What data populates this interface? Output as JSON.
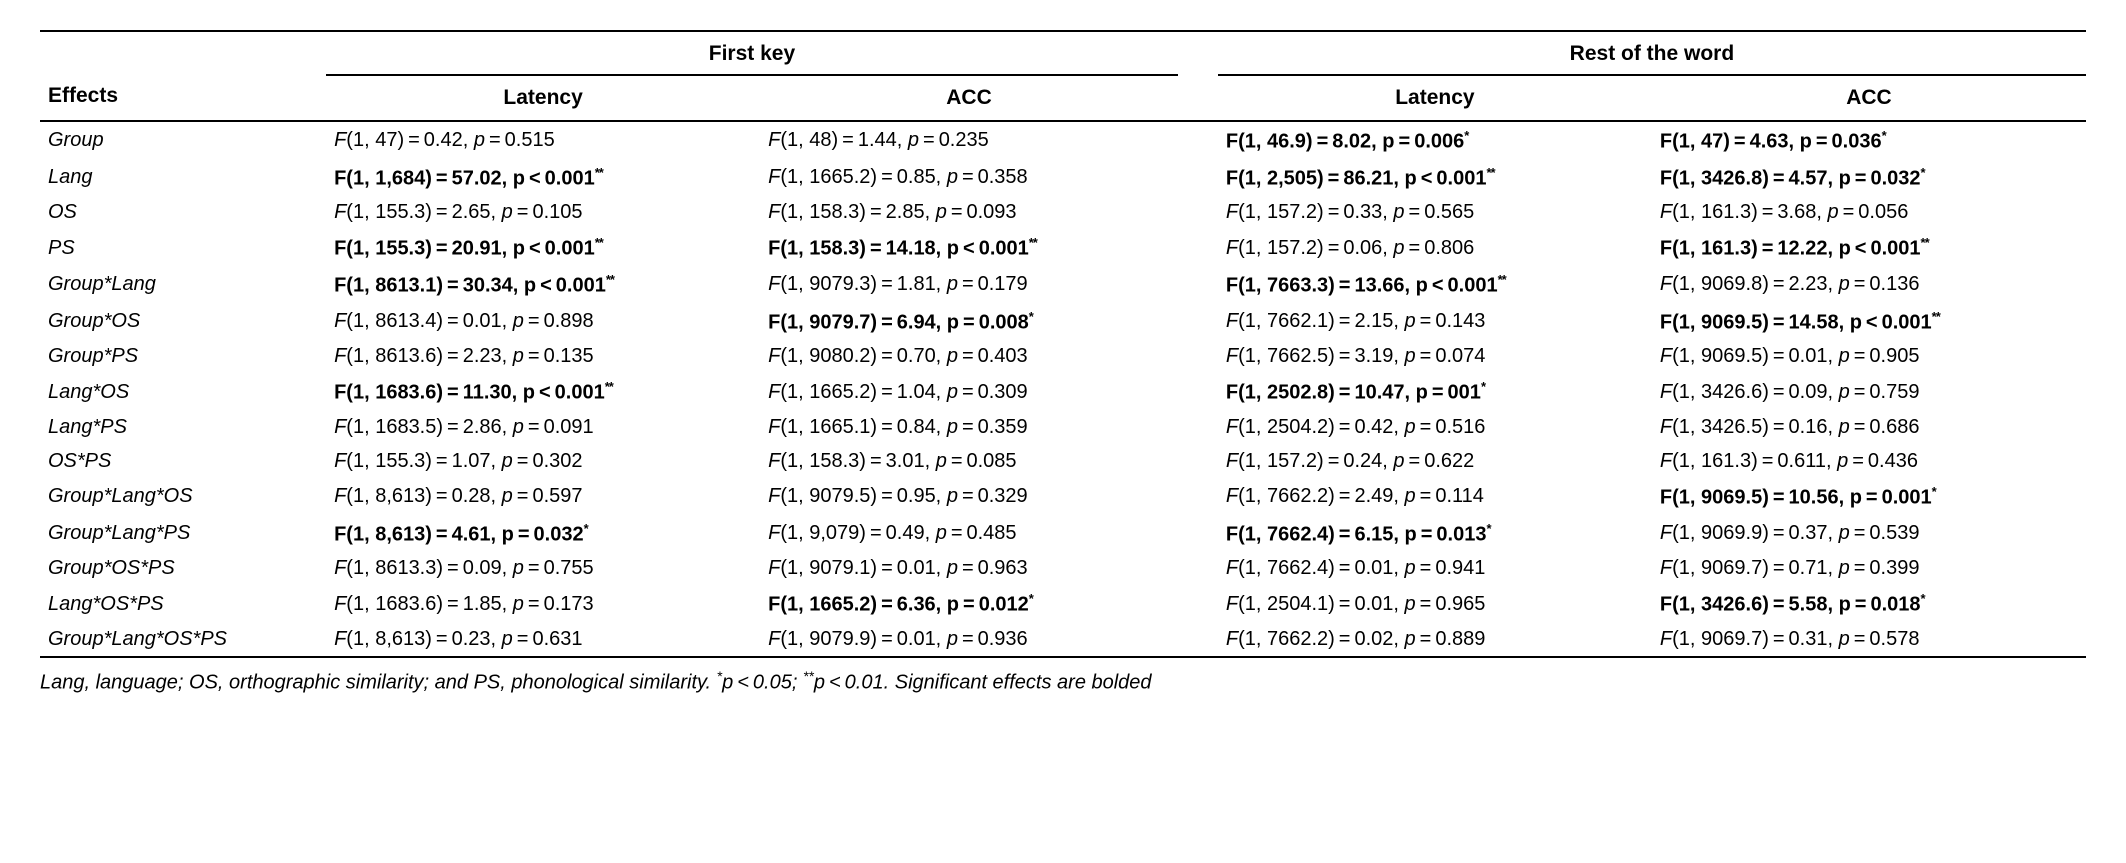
{
  "header": {
    "effects": "Effects",
    "group1": "First key",
    "group2": "Rest of the word",
    "sub1": "Latency",
    "sub2": "ACC"
  },
  "effects": [
    "Group",
    "Lang",
    "OS",
    "PS",
    "Group*Lang",
    "Group*OS",
    "Group*PS",
    "Lang*OS",
    "Lang*PS",
    "OS*PS",
    "Group*Lang*OS",
    "Group*Lang*PS",
    "Group*OS*PS",
    "Lang*OS*PS",
    "Group*Lang*OS*PS"
  ],
  "columns": [
    "fk_lat",
    "fk_acc",
    "rw_lat",
    "rw_acc"
  ],
  "cells": {
    "fk_lat": [
      {
        "df": "1, 47",
        "F": "0.42",
        "p": "0.515",
        "sig": 0,
        "eq": true
      },
      {
        "df": "1, 1,684",
        "F": "57.02",
        "p": "0.001",
        "sig": 2,
        "eq": false
      },
      {
        "df": "1, 155.3",
        "F": "2.65",
        "p": "0.105",
        "sig": 0,
        "eq": true
      },
      {
        "df": "1, 155.3",
        "F": "20.91",
        "p": "0.001",
        "sig": 2,
        "eq": false
      },
      {
        "df": "1, 8613.1",
        "F": "30.34",
        "p": "0.001",
        "sig": 2,
        "eq": false
      },
      {
        "df": "1, 8613.4",
        "F": "0.01",
        "p": "0.898",
        "sig": 0,
        "eq": true
      },
      {
        "df": "1, 8613.6",
        "F": "2.23",
        "p": "0.135",
        "sig": 0,
        "eq": true
      },
      {
        "df": "1, 1683.6",
        "F": "11.30",
        "p": "0.001",
        "sig": 2,
        "eq": false
      },
      {
        "df": "1, 1683.5",
        "F": "2.86",
        "p": "0.091",
        "sig": 0,
        "eq": true
      },
      {
        "df": "1, 155.3",
        "F": "1.07",
        "p": "0.302",
        "sig": 0,
        "eq": true
      },
      {
        "df": "1, 8,613",
        "F": "0.28",
        "p": "0.597",
        "sig": 0,
        "eq": true
      },
      {
        "df": "1, 8,613",
        "F": "4.61",
        "p": "0.032",
        "sig": 1,
        "eq": true
      },
      {
        "df": "1, 8613.3",
        "F": "0.09",
        "p": "0.755",
        "sig": 0,
        "eq": true
      },
      {
        "df": "1, 1683.6",
        "F": "1.85",
        "p": "0.173",
        "sig": 0,
        "eq": true
      },
      {
        "df": "1, 8,613",
        "F": "0.23",
        "p": "0.631",
        "sig": 0,
        "eq": true
      }
    ],
    "fk_acc": [
      {
        "df": "1, 48",
        "F": "1.44",
        "p": "0.235",
        "sig": 0,
        "eq": true
      },
      {
        "df": "1, 1665.2",
        "F": "0.85",
        "p": "0.358",
        "sig": 0,
        "eq": true
      },
      {
        "df": "1, 158.3",
        "F": "2.85",
        "p": "0.093",
        "sig": 0,
        "eq": true
      },
      {
        "df": "1, 158.3",
        "F": "14.18",
        "p": "0.001",
        "sig": 2,
        "eq": false
      },
      {
        "df": "1, 9079.3",
        "F": "1.81",
        "p": "0.179",
        "sig": 0,
        "eq": true
      },
      {
        "df": "1, 9079.7",
        "F": "6.94",
        "p": "0.008",
        "sig": 1,
        "eq": true
      },
      {
        "df": "1, 9080.2",
        "F": "0.70",
        "p": "0.403",
        "sig": 0,
        "eq": true
      },
      {
        "df": "1, 1665.2",
        "F": "1.04",
        "p": "0.309",
        "sig": 0,
        "eq": true
      },
      {
        "df": "1, 1665.1",
        "F": "0.84",
        "p": "0.359",
        "sig": 0,
        "eq": true
      },
      {
        "df": "1, 158.3",
        "F": "3.01",
        "p": "0.085",
        "sig": 0,
        "eq": true
      },
      {
        "df": "1, 9079.5",
        "F": "0.95",
        "p": "0.329",
        "sig": 0,
        "eq": true
      },
      {
        "df": "1, 9,079",
        "F": "0.49",
        "p": "0.485",
        "sig": 0,
        "eq": true
      },
      {
        "df": "1, 9079.1",
        "F": "0.01",
        "p": "0.963",
        "sig": 0,
        "eq": true
      },
      {
        "df": "1, 1665.2",
        "F": "6.36",
        "p": "0.012",
        "sig": 1,
        "eq": true
      },
      {
        "df": "1, 9079.9",
        "F": "0.01",
        "p": "0.936",
        "sig": 0,
        "eq": true
      }
    ],
    "rw_lat": [
      {
        "df": "1, 46.9",
        "F": "8.02",
        "p": "0.006",
        "sig": 1,
        "eq": true
      },
      {
        "df": "1, 2,505",
        "F": "86.21",
        "p": "0.001",
        "sig": 2,
        "eq": false
      },
      {
        "df": "1, 157.2",
        "F": "0.33",
        "p": "0.565",
        "sig": 0,
        "eq": true
      },
      {
        "df": "1, 157.2",
        "F": "0.06",
        "p": "0.806",
        "sig": 0,
        "eq": true
      },
      {
        "df": "1, 7663.3",
        "F": "13.66",
        "p": "0.001",
        "sig": 2,
        "eq": false
      },
      {
        "df": "1, 7662.1",
        "F": "2.15",
        "p": "0.143",
        "sig": 0,
        "eq": true
      },
      {
        "df": "1, 7662.5",
        "F": "3.19",
        "p": "0.074",
        "sig": 0,
        "eq": true
      },
      {
        "df": "1, 2502.8",
        "F": "10.47",
        "p": "001",
        "sig": 1,
        "eq": true
      },
      {
        "df": "1, 2504.2",
        "F": "0.42",
        "p": "0.516",
        "sig": 0,
        "eq": true
      },
      {
        "df": "1, 157.2",
        "F": "0.24",
        "p": "0.622",
        "sig": 0,
        "eq": true
      },
      {
        "df": "1, 7662.2",
        "F": "2.49",
        "p": "0.114",
        "sig": 0,
        "eq": true
      },
      {
        "df": "1, 7662.4",
        "F": "6.15",
        "p": "0.013",
        "sig": 1,
        "eq": true
      },
      {
        "df": "1, 7662.4",
        "F": "0.01",
        "p": "0.941",
        "sig": 0,
        "eq": true
      },
      {
        "df": "1, 2504.1",
        "F": "0.01",
        "p": "0.965",
        "sig": 0,
        "eq": true
      },
      {
        "df": "1, 7662.2",
        "F": "0.02",
        "p": "0.889",
        "sig": 0,
        "eq": true
      }
    ],
    "rw_acc": [
      {
        "df": "1, 47",
        "F": "4.63",
        "p": "0.036",
        "sig": 1,
        "eq": true
      },
      {
        "df": "1, 3426.8",
        "F": "4.57",
        "p": "0.032",
        "sig": 1,
        "eq": true
      },
      {
        "df": "1, 161.3",
        "F": "3.68",
        "p": "0.056",
        "sig": 0,
        "eq": true
      },
      {
        "df": "1, 161.3",
        "F": "12.22",
        "p": "0.001",
        "sig": 2,
        "eq": false
      },
      {
        "df": "1, 9069.8",
        "F": "2.23",
        "p": "0.136",
        "sig": 0,
        "eq": true
      },
      {
        "df": "1, 9069.5",
        "F": "14.58",
        "p": "0.001",
        "sig": 2,
        "eq": false
      },
      {
        "df": "1, 9069.5",
        "F": "0.01",
        "p": "0.905",
        "sig": 0,
        "eq": true
      },
      {
        "df": "1, 3426.6",
        "F": "0.09",
        "p": "0.759",
        "sig": 0,
        "eq": true
      },
      {
        "df": "1, 3426.5",
        "F": "0.16",
        "p": "0.686",
        "sig": 0,
        "eq": true
      },
      {
        "df": "1, 161.3",
        "F": "0.611",
        "p": "0.436",
        "sig": 0,
        "eq": true
      },
      {
        "df": "1, 9069.5",
        "F": "10.56",
        "p": "0.001",
        "sig": 1,
        "eq": true
      },
      {
        "df": "1, 9069.9",
        "F": "0.37",
        "p": "0.539",
        "sig": 0,
        "eq": true
      },
      {
        "df": "1, 9069.7",
        "F": "0.71",
        "p": "0.399",
        "sig": 0,
        "eq": true
      },
      {
        "df": "1, 3426.6",
        "F": "5.58",
        "p": "0.018",
        "sig": 1,
        "eq": true
      },
      {
        "df": "1, 9069.7",
        "F": "0.31",
        "p": "0.578",
        "sig": 0,
        "eq": true
      }
    ]
  },
  "footnote": {
    "abbrev": "Lang, language; OS, orthographic similarity; and PS, phonological similarity.",
    "sig1_pre": "*",
    "sig1_txt": "p < 0.05;",
    "sig2_pre": "**",
    "sig2_txt": "p < 0.01. Significant effects are bolded"
  }
}
